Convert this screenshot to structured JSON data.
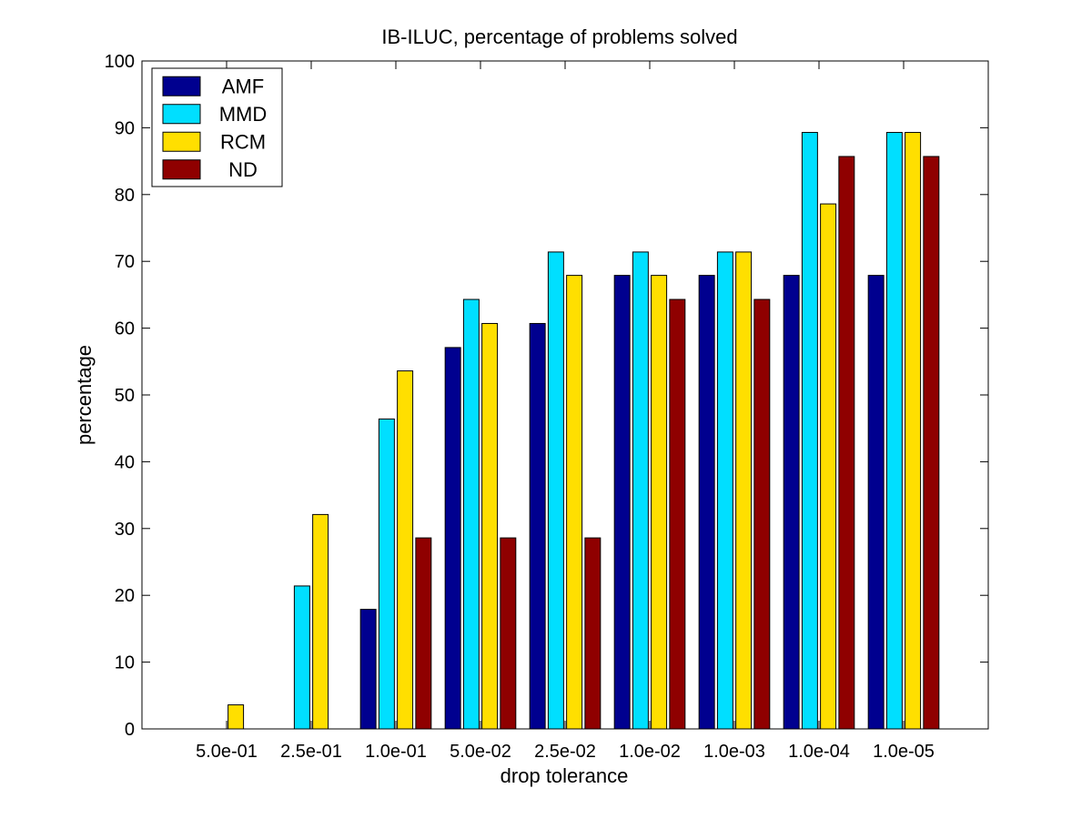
{
  "chart_data": {
    "type": "bar",
    "title": "IB-ILUC, percentage of problems solved",
    "xlabel": "drop tolerance",
    "ylabel": "percentage",
    "categories": [
      "5.0e-01",
      "2.5e-01",
      "1.0e-01",
      "5.0e-02",
      "2.5e-02",
      "1.0e-02",
      "1.0e-03",
      "1.0e-04",
      "1.0e-05"
    ],
    "ylim": [
      0,
      100
    ],
    "yticks": [
      0,
      10,
      20,
      30,
      40,
      50,
      60,
      70,
      80,
      90,
      100
    ],
    "grid": false,
    "legend_position": "top-left",
    "series": [
      {
        "name": "AMF",
        "color": "#00008f",
        "values": [
          0,
          0,
          17.9,
          57.1,
          60.7,
          67.9,
          67.9,
          67.9,
          67.9
        ]
      },
      {
        "name": "MMD",
        "color": "#00dfff",
        "values": [
          0,
          21.4,
          46.4,
          64.3,
          71.4,
          71.4,
          71.4,
          89.3,
          89.3
        ]
      },
      {
        "name": "RCM",
        "color": "#ffdf00",
        "values": [
          3.6,
          32.1,
          53.6,
          60.7,
          67.9,
          67.9,
          71.4,
          78.6,
          89.3
        ]
      },
      {
        "name": "ND",
        "color": "#8f0000",
        "values": [
          0,
          0,
          28.6,
          28.6,
          28.6,
          64.3,
          64.3,
          85.7,
          85.7
        ]
      }
    ]
  }
}
